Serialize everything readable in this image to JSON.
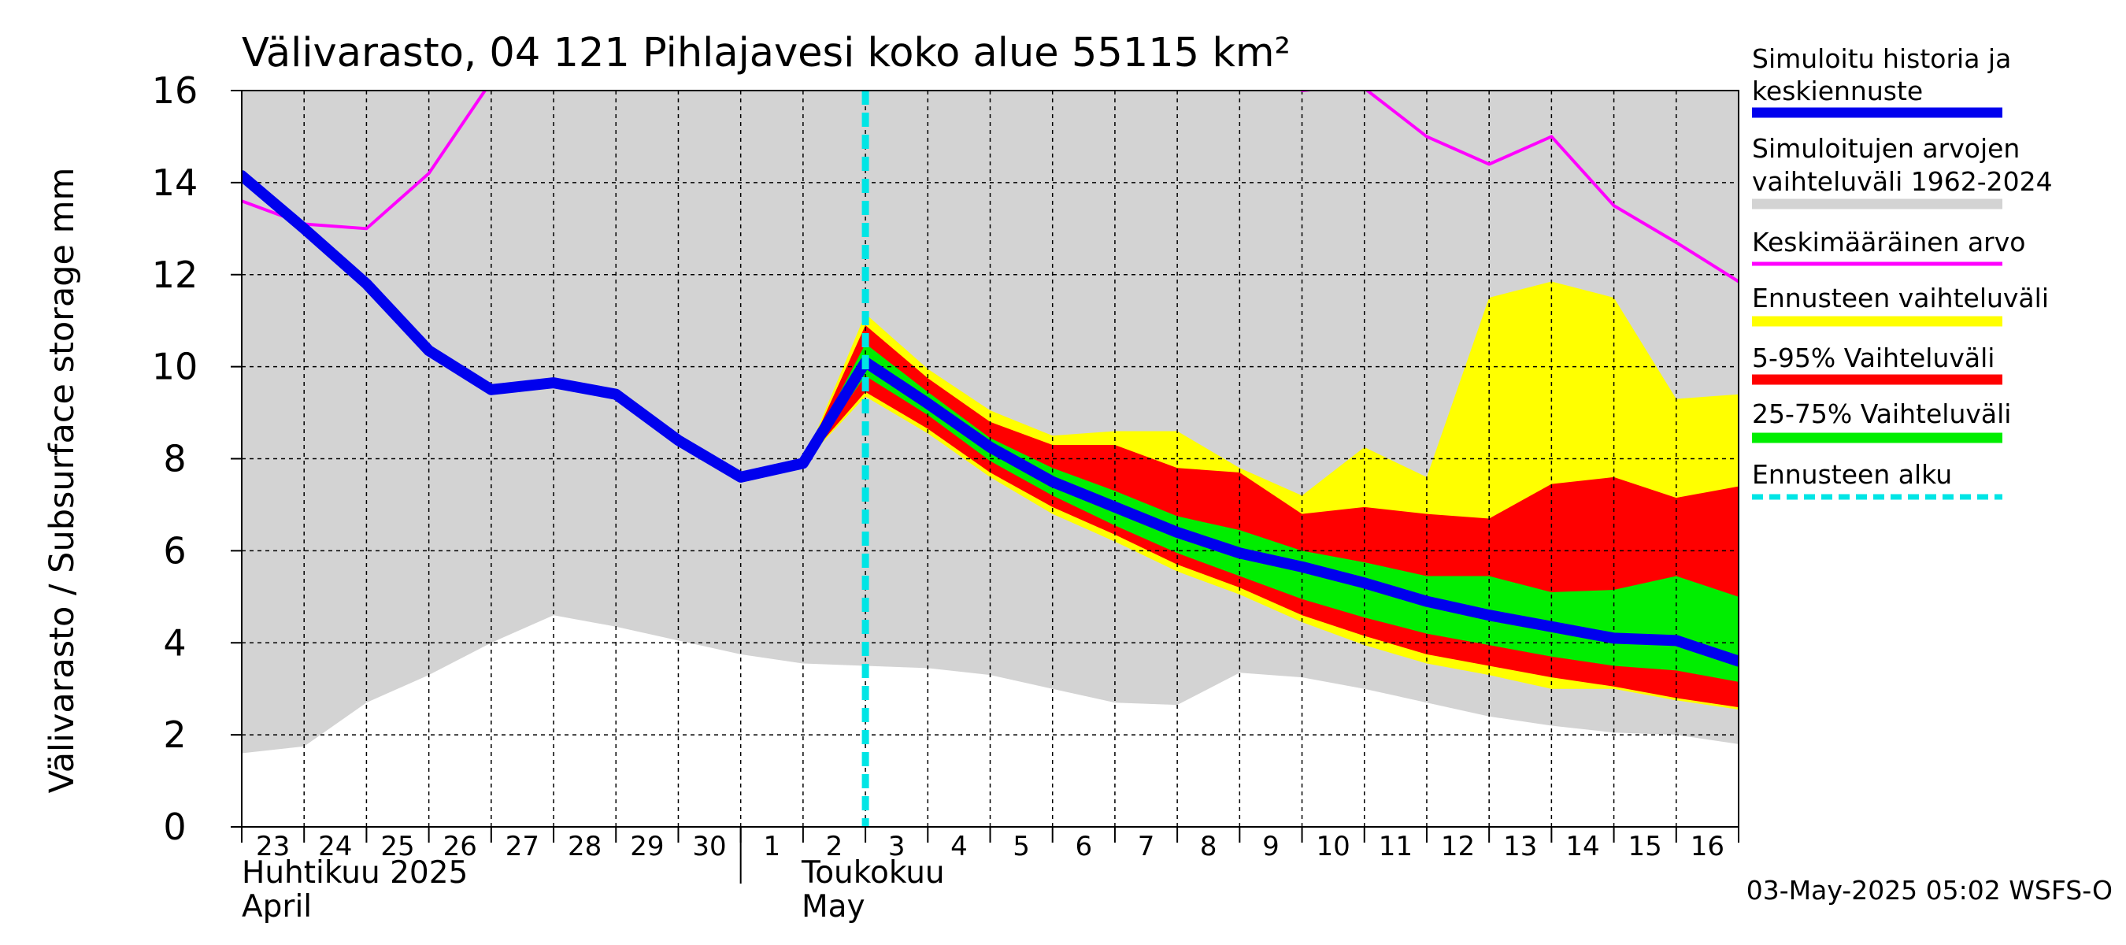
{
  "chart_data": {
    "type": "area",
    "title": "Välivarasto, 04 121 Pihlajavesi koko alue 55115 km²",
    "ylabel": "Välivarasto / Subsurface storage  mm",
    "ylim": [
      0,
      16
    ],
    "yticks": [
      0,
      2,
      4,
      6,
      8,
      10,
      12,
      14,
      16
    ],
    "grid": true,
    "x_start_day": 23,
    "days": [
      "23",
      "24",
      "25",
      "26",
      "27",
      "28",
      "29",
      "30",
      "1",
      "2",
      "3",
      "4",
      "5",
      "6",
      "7",
      "8",
      "9",
      "10",
      "11",
      "12",
      "13",
      "14",
      "15",
      "16"
    ],
    "month_labels": [
      {
        "line1": "Huhtikuu  2025",
        "line2": "April",
        "at_day": 0
      },
      {
        "line1": "Toukokuu",
        "line2": "May",
        "at_day": 9.5
      }
    ],
    "forecast_start_day": 10,
    "series": [
      {
        "name": "Simuloitujen arvojen vaihteluväli 1962-2024",
        "kind": "band",
        "color": "#d3d3d3",
        "x": [
          0,
          1,
          2,
          3,
          4,
          5,
          6,
          7,
          8,
          9,
          10,
          11,
          12,
          13,
          14,
          15,
          16,
          17,
          18,
          19,
          20,
          21,
          22,
          23,
          24
        ],
        "low": [
          1.6,
          1.75,
          2.7,
          3.3,
          4.0,
          4.6,
          4.35,
          4.05,
          3.75,
          3.55,
          3.5,
          3.45,
          3.3,
          3.0,
          2.7,
          2.65,
          3.35,
          3.25,
          3.0,
          2.7,
          2.4,
          2.2,
          2.05,
          2.0,
          1.8
        ],
        "high": [
          16,
          16,
          16,
          16,
          16,
          16,
          16,
          16,
          16,
          16,
          16,
          16,
          16,
          16,
          16,
          16,
          16,
          16,
          16,
          16,
          16,
          16,
          16,
          16,
          16
        ]
      },
      {
        "name": "Ennusteen vaihteluväli",
        "kind": "band",
        "color": "#ffff00",
        "x": [
          9,
          10,
          11,
          12,
          13,
          14,
          15,
          16,
          17,
          18,
          19,
          20,
          21,
          22,
          23,
          24
        ],
        "low": [
          7.9,
          9.35,
          8.55,
          7.6,
          6.8,
          6.2,
          5.55,
          5.05,
          4.45,
          3.95,
          3.55,
          3.3,
          3.0,
          3.0,
          2.75,
          2.55
        ],
        "high": [
          7.9,
          11.15,
          9.95,
          9.05,
          8.5,
          8.6,
          8.6,
          7.8,
          7.2,
          8.25,
          7.6,
          11.5,
          11.85,
          11.5,
          9.3,
          9.4
        ]
      },
      {
        "name": "5-95% Vaihteluväli",
        "kind": "band",
        "color": "#ff0000",
        "x": [
          9,
          10,
          11,
          12,
          13,
          14,
          15,
          16,
          17,
          18,
          19,
          20,
          21,
          22,
          23,
          24
        ],
        "low": [
          7.9,
          9.45,
          8.65,
          7.7,
          6.95,
          6.35,
          5.7,
          5.2,
          4.6,
          4.15,
          3.75,
          3.5,
          3.25,
          3.05,
          2.8,
          2.6
        ],
        "high": [
          7.9,
          10.9,
          9.75,
          8.8,
          8.3,
          8.3,
          7.8,
          7.7,
          6.8,
          6.95,
          6.8,
          6.7,
          7.45,
          7.6,
          7.15,
          7.4
        ]
      },
      {
        "name": "25-75% Vaihteluväli",
        "kind": "band",
        "color": "#00ee00",
        "x": [
          9,
          10,
          11,
          12,
          13,
          14,
          15,
          16,
          17,
          18,
          19,
          20,
          21,
          22,
          23,
          24
        ],
        "low": [
          7.9,
          9.8,
          8.95,
          7.95,
          7.2,
          6.55,
          5.95,
          5.45,
          4.95,
          4.55,
          4.2,
          3.95,
          3.7,
          3.5,
          3.4,
          3.15
        ],
        "high": [
          7.9,
          10.5,
          9.45,
          8.45,
          7.8,
          7.3,
          6.75,
          6.45,
          6.0,
          5.75,
          5.45,
          5.45,
          5.1,
          5.15,
          5.45,
          5.0
        ]
      },
      {
        "name": "Keskimääräinen arvo",
        "kind": "line",
        "color": "#ff00ff",
        "segments": [
          {
            "x": [
              0,
              1,
              2,
              3,
              4
            ],
            "y": [
              13.6,
              13.1,
              13.0,
              14.2,
              16.2
            ]
          },
          {
            "x": [
              17,
              17.4
            ],
            "y": [
              16.0,
              16.05
            ]
          },
          {
            "x": [
              18,
              19,
              20,
              21,
              22,
              23,
              24
            ],
            "y": [
              16.05,
              15.0,
              14.4,
              15.0,
              13.5,
              12.7,
              11.85
            ]
          }
        ]
      },
      {
        "name": "Simuloitu historia ja keskiennuste",
        "kind": "line",
        "color": "#0000ee",
        "x": [
          0,
          1,
          2,
          3,
          4,
          5,
          6,
          7,
          8,
          9,
          10,
          11,
          12,
          13,
          14,
          15,
          16,
          17,
          18,
          19,
          20,
          21,
          22,
          23,
          24
        ],
        "y": [
          14.15,
          13.0,
          11.8,
          10.35,
          9.5,
          9.65,
          9.4,
          8.4,
          7.6,
          7.9,
          10.1,
          9.2,
          8.25,
          7.5,
          6.95,
          6.4,
          5.95,
          5.65,
          5.3,
          4.9,
          4.6,
          4.35,
          4.1,
          4.05,
          3.6
        ]
      }
    ],
    "legend": [
      {
        "label": "Simuloitu historia ja keskiennuste",
        "color": "#0000ee",
        "style": "line"
      },
      {
        "label": "Simuloitujen arvojen vaihteluväli 1962-2024",
        "color": "#d3d3d3",
        "style": "band"
      },
      {
        "label": "Keskimääräinen arvo",
        "color": "#ff00ff",
        "style": "thin"
      },
      {
        "label": "Ennusteen vaihteluväli",
        "color": "#ffff00",
        "style": "band"
      },
      {
        "label": "5-95% Vaihteluväli",
        "color": "#ff0000",
        "style": "band"
      },
      {
        "label": "25-75% Vaihteluväli",
        "color": "#00ee00",
        "style": "band"
      },
      {
        "label": "Ennusteen alku",
        "color": "#00e5e5",
        "style": "dashed"
      }
    ],
    "footer": "03-May-2025 05:02 WSFS-O"
  }
}
